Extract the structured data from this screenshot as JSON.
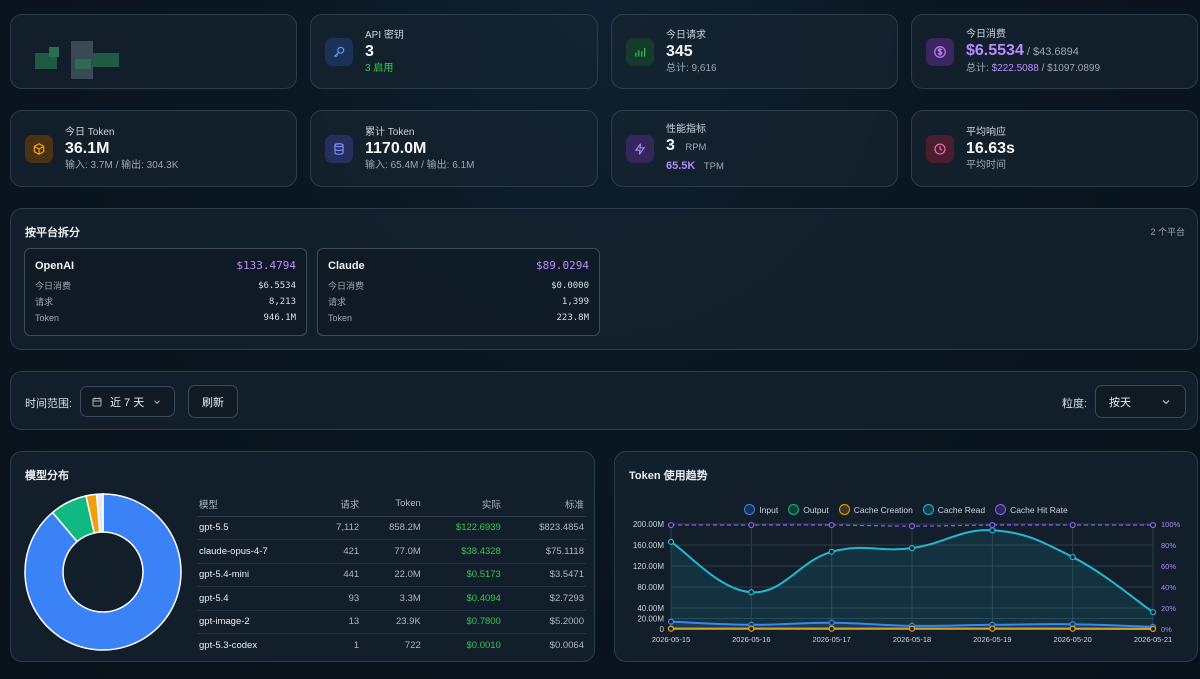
{
  "cards": {
    "api_keys": {
      "label": "API 密钥",
      "value": "3",
      "sub": "3 启用",
      "icon": "key-icon"
    },
    "today_requests": {
      "label": "今日请求",
      "value": "345",
      "sub": "总计: 9,616",
      "icon": "bar-chart-icon"
    },
    "today_cost": {
      "label": "今日消费",
      "value": "$6.5534",
      "value_std": " / $43.6894",
      "sub_prefix": "总计: ",
      "sub_actual": "$222.5088",
      "sub_std": " / $1097.0899",
      "icon": "dollar-icon"
    },
    "today_token": {
      "label": "今日 Token",
      "value": "36.1M",
      "sub": "输入: 3.7M / 输出: 304.3K",
      "icon": "box-icon"
    },
    "total_token": {
      "label": "累计 Token",
      "value": "1170.0M",
      "sub": "输入: 65.4M / 输出: 6.1M",
      "icon": "database-icon"
    },
    "performance": {
      "label": "性能指标",
      "rpm_value": "3",
      "rpm_unit": "RPM",
      "tpm_value": "65.5K",
      "tpm_unit": "TPM",
      "icon": "lightning-icon"
    },
    "avg_response": {
      "label": "平均响应",
      "value": "16.63s",
      "sub": "平均时间",
      "icon": "clock-icon"
    }
  },
  "platforms": {
    "title": "按平台拆分",
    "count": "2 个平台",
    "items": [
      {
        "name": "OpenAI",
        "total": "$133.4794",
        "rows": [
          {
            "k": "今日消费",
            "v": "$6.5534"
          },
          {
            "k": "请求",
            "v": "8,213"
          },
          {
            "k": "Token",
            "v": "946.1M"
          }
        ]
      },
      {
        "name": "Claude",
        "total": "$89.0294",
        "rows": [
          {
            "k": "今日消费",
            "v": "$0.0000"
          },
          {
            "k": "请求",
            "v": "1,399"
          },
          {
            "k": "Token",
            "v": "223.8M"
          }
        ]
      }
    ]
  },
  "filters": {
    "range_label": "时间范围:",
    "range_value": "近 7 天",
    "refresh_label": "刷新",
    "granularity_label": "粒度:",
    "granularity_value": "按天"
  },
  "models": {
    "title": "模型分布",
    "headers": [
      "模型",
      "请求",
      "Token",
      "实际",
      "标准"
    ],
    "rows": [
      [
        "gpt-5.5",
        "7,112",
        "858.2M",
        "$122.6939",
        "$823.4854"
      ],
      [
        "claude-opus-4-7",
        "421",
        "77.0M",
        "$38.4328",
        "$75.1118"
      ],
      [
        "gpt-5.4-mini",
        "441",
        "22.0M",
        "$0.5173",
        "$3.5471"
      ],
      [
        "gpt-5.4",
        "93",
        "3.3M",
        "$0.4094",
        "$2.7293"
      ],
      [
        "gpt-image-2",
        "13",
        "23.9K",
        "$0.7800",
        "$5.2000"
      ],
      [
        "gpt-5.3-codex",
        "1",
        "722",
        "$0.0010",
        "$0.0064"
      ]
    ],
    "donut": [
      {
        "name": "gpt-5.5",
        "share": 0.888,
        "color": "#3b82f6"
      },
      {
        "name": "claude-opus-4-7",
        "share": 0.077,
        "color": "#10b981"
      },
      {
        "name": "gpt-5.4-mini",
        "share": 0.022,
        "color": "#f59e0b"
      },
      {
        "name": "other",
        "share": 0.013,
        "color": "#e5e7eb"
      }
    ]
  },
  "chart_data": {
    "type": "line",
    "title": "Token 使用趋势",
    "x": [
      "2026-05-15",
      "2026-05-16",
      "2026-05-17",
      "2026-05-18",
      "2026-05-19",
      "2026-05-20",
      "2026-05-21"
    ],
    "y_ticks": [
      "0",
      "20.00M",
      "40.00M",
      "80.00M",
      "120.00M",
      "160.00M",
      "200.00M"
    ],
    "y2_ticks": [
      "0%",
      "20%",
      "40%",
      "60%",
      "80%",
      "100%"
    ],
    "ylim": [
      0,
      200
    ],
    "y2lim": [
      0,
      100
    ],
    "series": [
      {
        "name": "Input",
        "color": "#3b82f6",
        "values": [
          14,
          8,
          12,
          6,
          8,
          9,
          4
        ]
      },
      {
        "name": "Output",
        "color": "#10b981",
        "values": [
          1,
          1,
          1,
          1,
          1,
          1,
          0.5
        ]
      },
      {
        "name": "Cache Creation",
        "color": "#f59e0b",
        "values": [
          0.5,
          0.5,
          0.5,
          0.5,
          0.5,
          0.5,
          0.2
        ]
      },
      {
        "name": "Cache Read",
        "color": "#22b8cf",
        "values": [
          166,
          70,
          147,
          154,
          188,
          137,
          32
        ]
      },
      {
        "name": "Cache Hit Rate",
        "color": "#8b5cf6",
        "axis": "y2",
        "values": [
          99,
          99,
          99,
          98,
          99,
          99,
          99
        ]
      }
    ]
  }
}
